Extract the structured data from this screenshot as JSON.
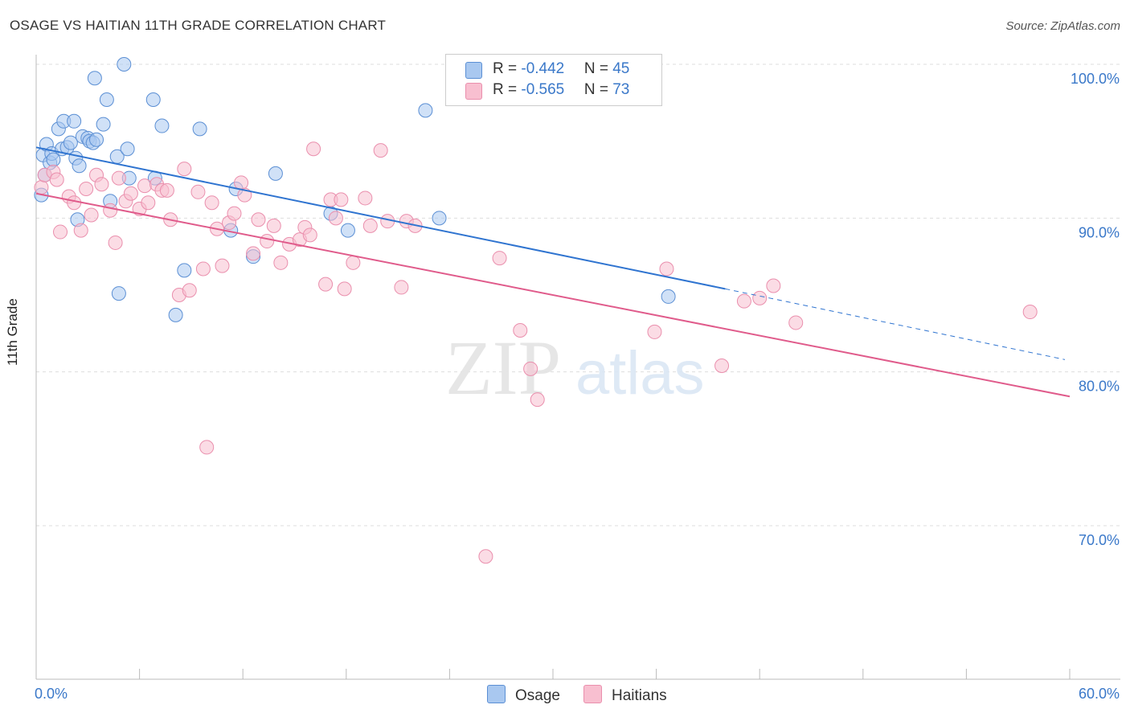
{
  "title": "OSAGE VS HAITIAN 11TH GRADE CORRELATION CHART",
  "source": "Source: ZipAtlas.com",
  "watermark": {
    "zip": "ZIP",
    "atlas": "atlas"
  },
  "colors": {
    "osage_fill": "#a9c8f0",
    "osage_stroke": "#5b8fd4",
    "osage_line": "#2f74d0",
    "haitians_fill": "#f8bfd0",
    "haitians_stroke": "#ea8fad",
    "haitians_line": "#e05b8b",
    "tick_label": "#3a78c9",
    "grid": "#dddddd"
  },
  "legend": {
    "osage": {
      "r_label": "R = ",
      "r_value": "-0.442",
      "n_label": "N = ",
      "n_value": "45"
    },
    "haitians": {
      "r_label": "R = ",
      "r_value": "-0.565",
      "n_label": "N = ",
      "n_value": "73"
    }
  },
  "chart_data": {
    "type": "scatter",
    "title": "OSAGE VS HAITIAN 11TH GRADE CORRELATION CHART",
    "xlabel": "",
    "ylabel": "11th Grade",
    "xlim": [
      0,
      60
    ],
    "ylim": [
      61.5,
      101.5
    ],
    "x_tick_labels": [
      "0.0%",
      "60.0%"
    ],
    "y_ticks": [
      70,
      80,
      90,
      100
    ],
    "y_tick_labels": [
      "70.0%",
      "80.0%",
      "90.0%",
      "100.0%"
    ],
    "grid": true,
    "legend_position": "top-center",
    "series": [
      {
        "name": "Osage",
        "trend": {
          "x0": 0,
          "y0": 94.6,
          "x1": 40,
          "y1": 85.4,
          "dashed_to_x": 60,
          "dashed_to_y": 80.8
        },
        "points": [
          [
            0.3,
            91.5
          ],
          [
            0.4,
            94.1
          ],
          [
            0.5,
            92.8
          ],
          [
            0.6,
            94.8
          ],
          [
            0.8,
            93.6
          ],
          [
            0.9,
            94.2
          ],
          [
            1.0,
            93.8
          ],
          [
            1.3,
            95.8
          ],
          [
            1.5,
            94.5
          ],
          [
            1.6,
            96.3
          ],
          [
            1.8,
            94.6
          ],
          [
            2.0,
            94.9
          ],
          [
            2.2,
            96.3
          ],
          [
            2.3,
            93.9
          ],
          [
            2.4,
            89.9
          ],
          [
            2.5,
            93.4
          ],
          [
            2.7,
            95.3
          ],
          [
            3.0,
            95.2
          ],
          [
            3.1,
            95.0
          ],
          [
            3.3,
            94.9
          ],
          [
            3.4,
            99.1
          ],
          [
            3.5,
            95.1
          ],
          [
            3.9,
            96.1
          ],
          [
            4.1,
            97.7
          ],
          [
            4.3,
            91.1
          ],
          [
            4.7,
            94.0
          ],
          [
            4.8,
            85.1
          ],
          [
            5.1,
            100.0
          ],
          [
            5.3,
            94.5
          ],
          [
            5.4,
            92.6
          ],
          [
            6.8,
            97.7
          ],
          [
            6.9,
            92.6
          ],
          [
            7.3,
            96.0
          ],
          [
            8.6,
            86.6
          ],
          [
            8.1,
            83.7
          ],
          [
            9.5,
            95.8
          ],
          [
            11.3,
            89.2
          ],
          [
            11.6,
            91.9
          ],
          [
            12.6,
            87.5
          ],
          [
            13.9,
            92.9
          ],
          [
            17.1,
            90.3
          ],
          [
            18.1,
            89.2
          ],
          [
            22.6,
            97.0
          ],
          [
            23.4,
            90.0
          ],
          [
            36.7,
            84.9
          ]
        ]
      },
      {
        "name": "Haitians",
        "trend": {
          "x0": 0,
          "y0": 91.6,
          "x1": 60,
          "y1": 78.4
        },
        "points": [
          [
            0.3,
            92.0
          ],
          [
            0.5,
            92.8
          ],
          [
            1.0,
            93.0
          ],
          [
            1.2,
            92.5
          ],
          [
            1.4,
            89.1
          ],
          [
            1.9,
            91.4
          ],
          [
            2.2,
            91.0
          ],
          [
            2.6,
            89.2
          ],
          [
            2.9,
            91.9
          ],
          [
            3.2,
            90.2
          ],
          [
            3.5,
            92.8
          ],
          [
            3.8,
            92.2
          ],
          [
            4.3,
            90.5
          ],
          [
            4.6,
            88.4
          ],
          [
            4.8,
            92.6
          ],
          [
            5.2,
            91.1
          ],
          [
            5.5,
            91.6
          ],
          [
            6.0,
            90.6
          ],
          [
            6.3,
            92.1
          ],
          [
            6.5,
            91.0
          ],
          [
            7.0,
            92.2
          ],
          [
            7.3,
            91.8
          ],
          [
            7.6,
            91.8
          ],
          [
            7.8,
            89.9
          ],
          [
            8.3,
            85.0
          ],
          [
            8.6,
            93.2
          ],
          [
            8.9,
            85.3
          ],
          [
            9.4,
            91.7
          ],
          [
            9.7,
            86.7
          ],
          [
            9.9,
            75.1
          ],
          [
            10.2,
            91.0
          ],
          [
            10.5,
            89.3
          ],
          [
            10.8,
            86.9
          ],
          [
            11.2,
            89.7
          ],
          [
            11.5,
            90.3
          ],
          [
            11.9,
            92.3
          ],
          [
            12.1,
            91.5
          ],
          [
            12.6,
            87.7
          ],
          [
            12.9,
            89.9
          ],
          [
            13.4,
            88.5
          ],
          [
            13.8,
            89.5
          ],
          [
            14.2,
            87.1
          ],
          [
            14.7,
            88.3
          ],
          [
            15.3,
            88.6
          ],
          [
            15.6,
            89.4
          ],
          [
            15.9,
            88.9
          ],
          [
            16.1,
            94.5
          ],
          [
            16.8,
            85.7
          ],
          [
            17.1,
            91.2
          ],
          [
            17.4,
            90.0
          ],
          [
            17.7,
            91.2
          ],
          [
            17.9,
            85.4
          ],
          [
            18.4,
            87.1
          ],
          [
            19.1,
            91.3
          ],
          [
            19.4,
            89.5
          ],
          [
            20.0,
            94.4
          ],
          [
            20.4,
            89.8
          ],
          [
            21.2,
            85.5
          ],
          [
            21.5,
            89.8
          ],
          [
            22.0,
            89.5
          ],
          [
            26.9,
            87.4
          ],
          [
            28.1,
            82.7
          ],
          [
            28.7,
            80.2
          ],
          [
            29.1,
            78.2
          ],
          [
            26.1,
            68.0
          ],
          [
            35.9,
            82.6
          ],
          [
            36.6,
            86.7
          ],
          [
            39.8,
            80.4
          ],
          [
            41.1,
            84.6
          ],
          [
            42.0,
            84.8
          ],
          [
            42.8,
            85.6
          ],
          [
            44.1,
            83.2
          ],
          [
            57.7,
            83.9
          ]
        ]
      }
    ]
  }
}
